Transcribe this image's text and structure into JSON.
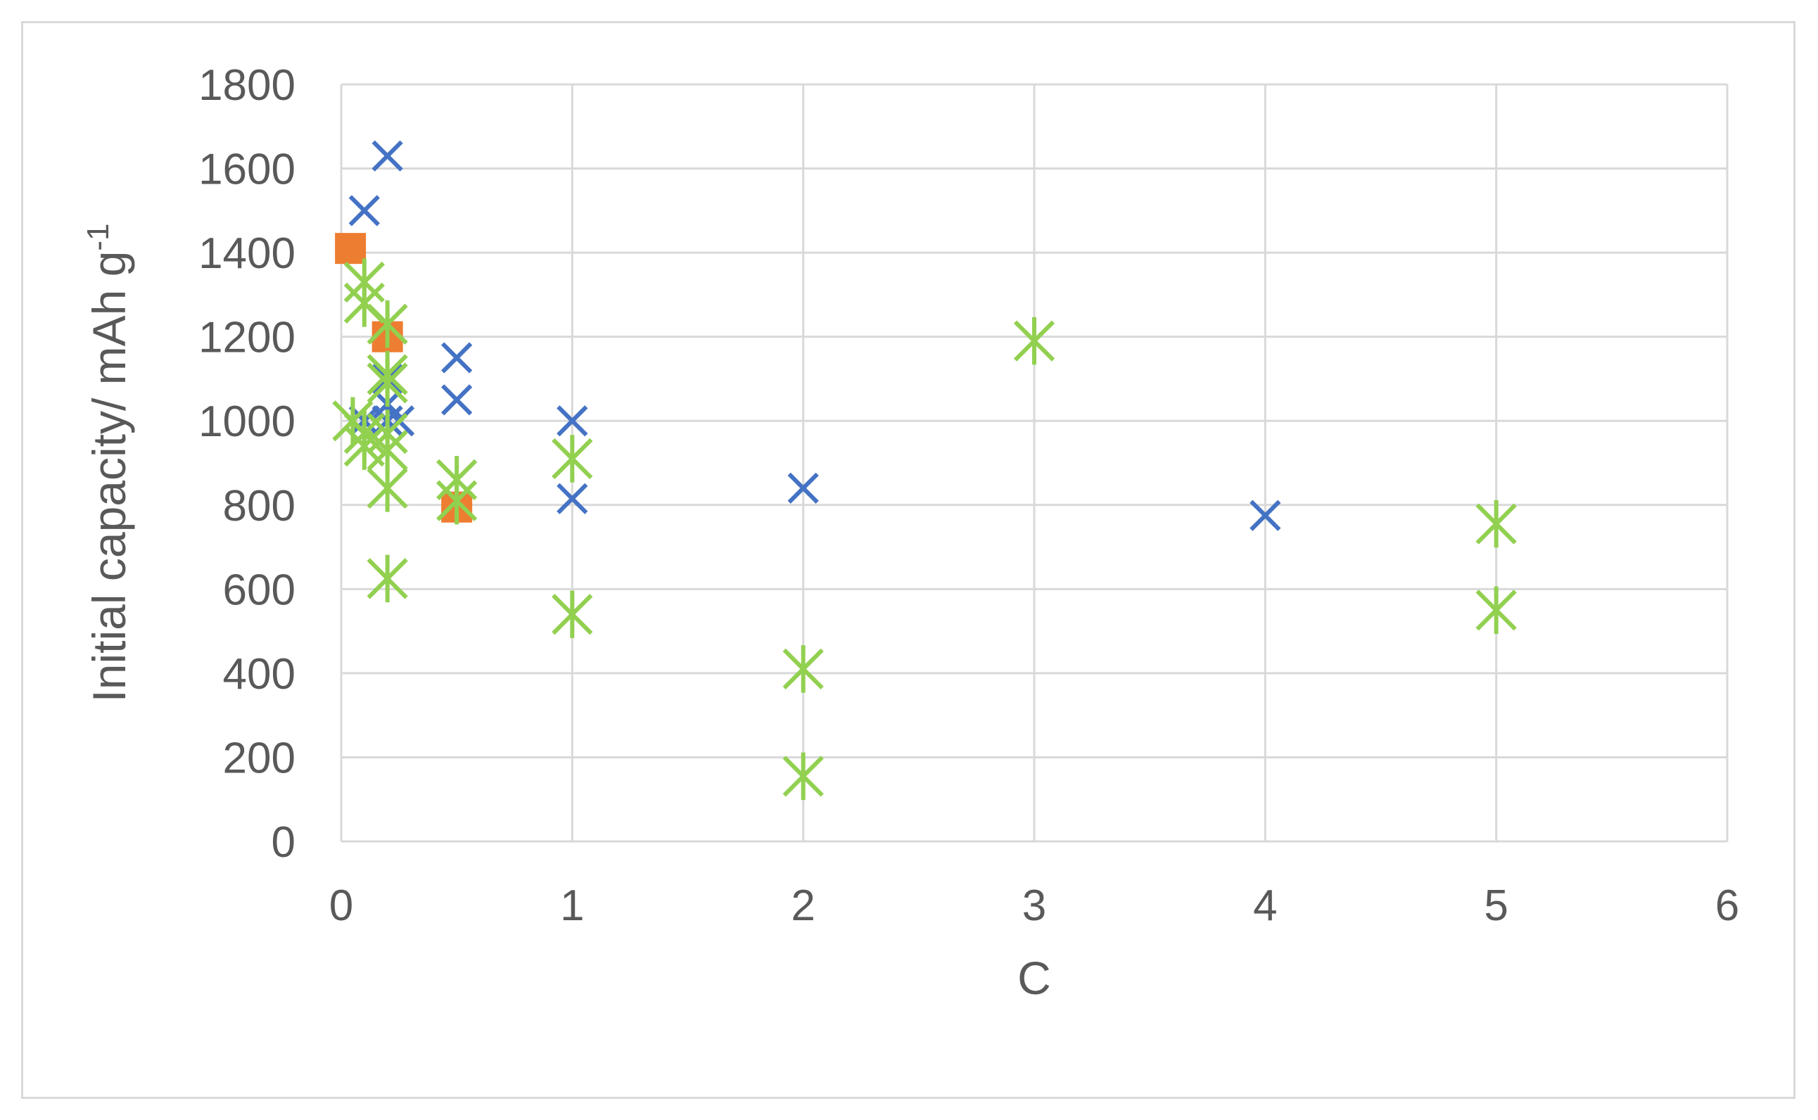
{
  "chart_data": {
    "type": "scatter",
    "title": "",
    "xlabel": "C",
    "ylabel": "Initial capacity/ mAh g",
    "ylabel_superscript": "-1",
    "xlim": [
      0,
      6
    ],
    "ylim": [
      0,
      1800
    ],
    "x_ticks": [
      0,
      1,
      2,
      3,
      4,
      5,
      6
    ],
    "y_ticks": [
      0,
      200,
      400,
      600,
      800,
      1000,
      1200,
      1400,
      1600,
      1800
    ],
    "x_tick_labels": [
      "0",
      "1",
      "2",
      "3",
      "4",
      "5",
      "6"
    ],
    "y_tick_labels": [
      "0",
      "200",
      "400",
      "600",
      "800",
      "1000",
      "1200",
      "1400",
      "1600",
      "1800"
    ],
    "grid": true,
    "legend": "none",
    "series": [
      {
        "marker": "x",
        "color": "#4472c4",
        "points": [
          [
            0.1,
            1500
          ],
          [
            0.2,
            1630
          ],
          [
            0.2,
            1100
          ],
          [
            0.2,
            1040
          ],
          [
            0.2,
            1000
          ],
          [
            0.25,
            1000
          ],
          [
            0.1,
            1000
          ],
          [
            0.5,
            1150
          ],
          [
            0.5,
            1050
          ],
          [
            1,
            1000
          ],
          [
            1,
            815
          ],
          [
            2,
            840
          ],
          [
            4,
            775
          ]
        ]
      },
      {
        "marker": "square",
        "color": "#ed7d31",
        "points": [
          [
            0.04,
            1410
          ],
          [
            0.2,
            1200
          ],
          [
            0.5,
            795
          ]
        ]
      },
      {
        "marker": "star",
        "color": "#92d050",
        "points": [
          [
            0.1,
            1330
          ],
          [
            0.1,
            1280
          ],
          [
            0.2,
            1230
          ],
          [
            0.2,
            1110
          ],
          [
            0.2,
            1090
          ],
          [
            0.05,
            1000
          ],
          [
            0.1,
            970
          ],
          [
            0.1,
            940
          ],
          [
            0.2,
            970
          ],
          [
            0.2,
            930
          ],
          [
            0.2,
            840
          ],
          [
            0.2,
            625
          ],
          [
            0.5,
            860
          ],
          [
            0.5,
            810
          ],
          [
            1,
            910
          ],
          [
            1,
            540
          ],
          [
            2,
            410
          ],
          [
            2,
            155
          ],
          [
            3,
            1190
          ],
          [
            5,
            755
          ],
          [
            5,
            550
          ]
        ]
      }
    ]
  }
}
